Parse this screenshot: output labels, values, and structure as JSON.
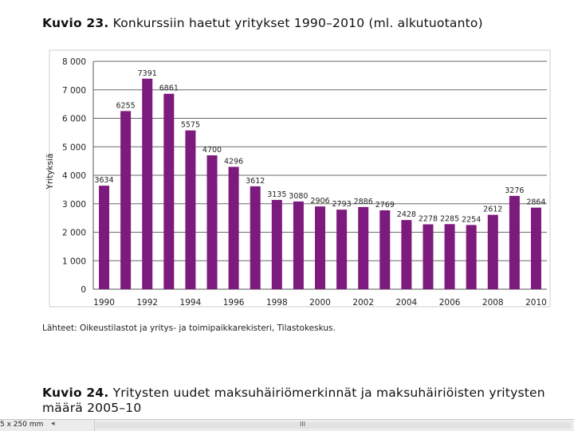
{
  "figure": {
    "label": "Kuvio 23.",
    "title": "Konkurssiin haetut yritykset 1990–2010 (ml. alkutuotanto)"
  },
  "chart_data": {
    "type": "bar",
    "title": "Konkurssiin haetut yritykset 1990–2010 (ml. alkutuotanto)",
    "xlabel": "",
    "ylabel": "Yrityksiä",
    "ylim": [
      0,
      8000
    ],
    "yticks": [
      0,
      1000,
      2000,
      3000,
      4000,
      5000,
      6000,
      7000,
      8000
    ],
    "ytick_labels": [
      "0",
      "1 000",
      "2 000",
      "3 000",
      "4 000",
      "5 000",
      "6 000",
      "7 000",
      "8 000"
    ],
    "xtick_labels": [
      "1990",
      "1992",
      "1994",
      "1996",
      "1998",
      "2000",
      "2002",
      "2004",
      "2006",
      "2008",
      "2010"
    ],
    "categories": [
      "1990",
      "1991",
      "1992",
      "1993",
      "1994",
      "1995",
      "1996",
      "1997",
      "1998",
      "1999",
      "2000",
      "2001",
      "2002",
      "2003",
      "2004",
      "2005",
      "2006",
      "2007",
      "2008",
      "2009",
      "2010"
    ],
    "values": [
      3634,
      6255,
      7391,
      6861,
      5575,
      4700,
      4296,
      3612,
      3135,
      3080,
      2906,
      2793,
      2886,
      2769,
      2428,
      2278,
      2285,
      2254,
      2612,
      3276,
      2864
    ],
    "grid": true,
    "bar_color": "#7d1a7d",
    "grid_color": "#6a6a6a"
  },
  "source_text": "Lähteet: Oikeustilastot ja yritys- ja toimipaikkarekisteri, Tilastokeskus.",
  "next_figure": {
    "label": "Kuvio 24.",
    "title": "Yritysten uudet maksuhäiriömerkinnät ja maksuhäiriöisten yritysten määrä 2005–10"
  },
  "status_bar": {
    "page_size": "5 x 250 mm",
    "scroll_left_arrow": "◂",
    "scroll_thumb": "III"
  }
}
